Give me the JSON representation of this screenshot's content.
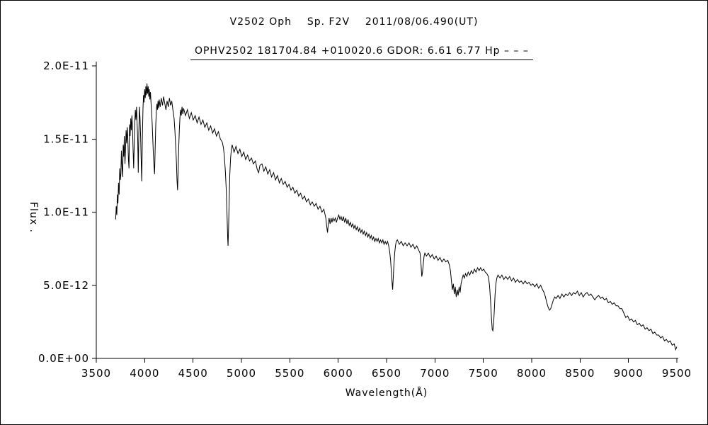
{
  "chart_data": {
    "type": "line",
    "title": "V2502 Oph    Sp. F2V    2011/08/06.490(UT)",
    "subtitle": "OPHV2502 181704.84 +010020.6 GDOR: 6.61 6.77 Hp – – –",
    "xlabel": "Wavelength(Å)",
    "ylabel": "Flux .",
    "xlim": [
      3500,
      9500
    ],
    "ylim": [
      0,
      2.0
    ],
    "y_unit_scale": "1e-11",
    "grid": false,
    "legend": "none",
    "x_ticks": [
      3500,
      4000,
      4500,
      5000,
      5500,
      6000,
      6500,
      7000,
      7500,
      8000,
      8500,
      9000,
      9500
    ],
    "y_ticks": [
      {
        "value": 0.0,
        "label": "0.0E+00"
      },
      {
        "value": 0.5,
        "label": "5.0E-12"
      },
      {
        "value": 1.0,
        "label": "1.0E-11"
      },
      {
        "value": 1.5,
        "label": "1.5E-11"
      },
      {
        "value": 2.0,
        "label": "2.0E-11"
      }
    ],
    "line_color": "#000000",
    "points": [
      [
        3700,
        0.95
      ],
      [
        3706,
        1.04
      ],
      [
        3712,
        0.98
      ],
      [
        3718,
        1.12
      ],
      [
        3724,
        1.06
      ],
      [
        3730,
        1.2
      ],
      [
        3736,
        1.12
      ],
      [
        3742,
        1.3
      ],
      [
        3748,
        1.22
      ],
      [
        3754,
        1.26
      ],
      [
        3760,
        1.42
      ],
      [
        3766,
        1.3
      ],
      [
        3772,
        1.24
      ],
      [
        3778,
        1.46
      ],
      [
        3784,
        1.38
      ],
      [
        3790,
        1.52
      ],
      [
        3796,
        1.33
      ],
      [
        3802,
        1.43
      ],
      [
        3808,
        1.56
      ],
      [
        3814,
        1.47
      ],
      [
        3820,
        1.58
      ],
      [
        3826,
        1.5
      ],
      [
        3832,
        1.36
      ],
      [
        3838,
        1.3
      ],
      [
        3844,
        1.6
      ],
      [
        3850,
        1.52
      ],
      [
        3856,
        1.64
      ],
      [
        3862,
        1.56
      ],
      [
        3868,
        1.66
      ],
      [
        3874,
        1.58
      ],
      [
        3880,
        1.44
      ],
      [
        3886,
        1.3
      ],
      [
        3892,
        1.46
      ],
      [
        3898,
        1.62
      ],
      [
        3904,
        1.7
      ],
      [
        3910,
        1.63
      ],
      [
        3916,
        1.72
      ],
      [
        3922,
        1.6
      ],
      [
        3928,
        1.5
      ],
      [
        3934,
        1.27
      ],
      [
        3940,
        1.55
      ],
      [
        3946,
        1.72
      ],
      [
        3952,
        1.64
      ],
      [
        3958,
        1.52
      ],
      [
        3964,
        1.36
      ],
      [
        3970,
        1.21
      ],
      [
        3976,
        1.5
      ],
      [
        3982,
        1.7
      ],
      [
        3988,
        1.8
      ],
      [
        3994,
        1.75
      ],
      [
        4000,
        1.84
      ],
      [
        4006,
        1.78
      ],
      [
        4012,
        1.86
      ],
      [
        4018,
        1.8
      ],
      [
        4024,
        1.88
      ],
      [
        4030,
        1.81
      ],
      [
        4036,
        1.86
      ],
      [
        4042,
        1.79
      ],
      [
        4048,
        1.84
      ],
      [
        4054,
        1.77
      ],
      [
        4060,
        1.82
      ],
      [
        4066,
        1.74
      ],
      [
        4072,
        1.68
      ],
      [
        4078,
        1.6
      ],
      [
        4084,
        1.5
      ],
      [
        4090,
        1.4
      ],
      [
        4096,
        1.32
      ],
      [
        4102,
        1.26
      ],
      [
        4108,
        1.42
      ],
      [
        4114,
        1.58
      ],
      [
        4120,
        1.68
      ],
      [
        4126,
        1.74
      ],
      [
        4132,
        1.7
      ],
      [
        4138,
        1.76
      ],
      [
        4144,
        1.71
      ],
      [
        4150,
        1.77
      ],
      [
        4160,
        1.72
      ],
      [
        4172,
        1.78
      ],
      [
        4184,
        1.73
      ],
      [
        4196,
        1.79
      ],
      [
        4208,
        1.74
      ],
      [
        4220,
        1.7
      ],
      [
        4232,
        1.76
      ],
      [
        4244,
        1.72
      ],
      [
        4256,
        1.78
      ],
      [
        4268,
        1.73
      ],
      [
        4280,
        1.76
      ],
      [
        4292,
        1.7
      ],
      [
        4304,
        1.64
      ],
      [
        4312,
        1.56
      ],
      [
        4320,
        1.46
      ],
      [
        4328,
        1.34
      ],
      [
        4334,
        1.22
      ],
      [
        4340,
        1.15
      ],
      [
        4346,
        1.28
      ],
      [
        4352,
        1.44
      ],
      [
        4358,
        1.56
      ],
      [
        4364,
        1.64
      ],
      [
        4370,
        1.7
      ],
      [
        4378,
        1.66
      ],
      [
        4386,
        1.72
      ],
      [
        4394,
        1.67
      ],
      [
        4402,
        1.71
      ],
      [
        4422,
        1.66
      ],
      [
        4442,
        1.7
      ],
      [
        4462,
        1.64
      ],
      [
        4482,
        1.68
      ],
      [
        4502,
        1.63
      ],
      [
        4522,
        1.66
      ],
      [
        4542,
        1.61
      ],
      [
        4562,
        1.65
      ],
      [
        4582,
        1.6
      ],
      [
        4602,
        1.63
      ],
      [
        4622,
        1.58
      ],
      [
        4642,
        1.61
      ],
      [
        4662,
        1.56
      ],
      [
        4682,
        1.59
      ],
      [
        4702,
        1.54
      ],
      [
        4722,
        1.57
      ],
      [
        4742,
        1.52
      ],
      [
        4762,
        1.55
      ],
      [
        4782,
        1.5
      ],
      [
        4802,
        1.48
      ],
      [
        4814,
        1.44
      ],
      [
        4824,
        1.38
      ],
      [
        4834,
        1.28
      ],
      [
        4844,
        1.14
      ],
      [
        4852,
        0.96
      ],
      [
        4858,
        0.82
      ],
      [
        4862,
        0.77
      ],
      [
        4868,
        0.92
      ],
      [
        4874,
        1.1
      ],
      [
        4880,
        1.26
      ],
      [
        4888,
        1.37
      ],
      [
        4896,
        1.43
      ],
      [
        4904,
        1.46
      ],
      [
        4924,
        1.41
      ],
      [
        4944,
        1.45
      ],
      [
        4964,
        1.4
      ],
      [
        4984,
        1.43
      ],
      [
        5004,
        1.38
      ],
      [
        5024,
        1.41
      ],
      [
        5044,
        1.36
      ],
      [
        5064,
        1.39
      ],
      [
        5084,
        1.35
      ],
      [
        5104,
        1.37
      ],
      [
        5124,
        1.33
      ],
      [
        5144,
        1.35
      ],
      [
        5164,
        1.29
      ],
      [
        5178,
        1.27
      ],
      [
        5192,
        1.32
      ],
      [
        5212,
        1.33
      ],
      [
        5232,
        1.28
      ],
      [
        5252,
        1.31
      ],
      [
        5272,
        1.26
      ],
      [
        5292,
        1.29
      ],
      [
        5312,
        1.24
      ],
      [
        5332,
        1.27
      ],
      [
        5352,
        1.22
      ],
      [
        5372,
        1.25
      ],
      [
        5392,
        1.2
      ],
      [
        5412,
        1.23
      ],
      [
        5432,
        1.19
      ],
      [
        5452,
        1.21
      ],
      [
        5472,
        1.17
      ],
      [
        5492,
        1.19
      ],
      [
        5512,
        1.15
      ],
      [
        5532,
        1.17
      ],
      [
        5552,
        1.13
      ],
      [
        5572,
        1.15
      ],
      [
        5592,
        1.11
      ],
      [
        5612,
        1.13
      ],
      [
        5632,
        1.09
      ],
      [
        5652,
        1.11
      ],
      [
        5672,
        1.07
      ],
      [
        5692,
        1.09
      ],
      [
        5712,
        1.05
      ],
      [
        5732,
        1.07
      ],
      [
        5752,
        1.04
      ],
      [
        5772,
        1.06
      ],
      [
        5792,
        1.02
      ],
      [
        5812,
        1.04
      ],
      [
        5832,
        1.0
      ],
      [
        5852,
        1.02
      ],
      [
        5872,
        0.96
      ],
      [
        5882,
        0.9
      ],
      [
        5890,
        0.86
      ],
      [
        5898,
        0.92
      ],
      [
        5906,
        0.96
      ],
      [
        5916,
        0.92
      ],
      [
        5926,
        0.96
      ],
      [
        5936,
        0.93
      ],
      [
        5946,
        0.96
      ],
      [
        5958,
        0.94
      ],
      [
        5970,
        0.96
      ],
      [
        5982,
        0.93
      ],
      [
        5994,
        0.96
      ],
      [
        6006,
        0.98
      ],
      [
        6018,
        0.95
      ],
      [
        6030,
        0.97
      ],
      [
        6042,
        0.94
      ],
      [
        6054,
        0.97
      ],
      [
        6066,
        0.93
      ],
      [
        6078,
        0.96
      ],
      [
        6090,
        0.92
      ],
      [
        6102,
        0.95
      ],
      [
        6114,
        0.91
      ],
      [
        6126,
        0.93
      ],
      [
        6138,
        0.9
      ],
      [
        6150,
        0.92
      ],
      [
        6162,
        0.89
      ],
      [
        6174,
        0.91
      ],
      [
        6186,
        0.88
      ],
      [
        6198,
        0.9
      ],
      [
        6210,
        0.87
      ],
      [
        6222,
        0.89
      ],
      [
        6234,
        0.86
      ],
      [
        6246,
        0.88
      ],
      [
        6258,
        0.85
      ],
      [
        6270,
        0.87
      ],
      [
        6282,
        0.84
      ],
      [
        6294,
        0.86
      ],
      [
        6306,
        0.83
      ],
      [
        6318,
        0.85
      ],
      [
        6330,
        0.82
      ],
      [
        6342,
        0.84
      ],
      [
        6354,
        0.81
      ],
      [
        6366,
        0.83
      ],
      [
        6378,
        0.8
      ],
      [
        6390,
        0.82
      ],
      [
        6402,
        0.8
      ],
      [
        6414,
        0.82
      ],
      [
        6426,
        0.79
      ],
      [
        6438,
        0.81
      ],
      [
        6450,
        0.79
      ],
      [
        6462,
        0.81
      ],
      [
        6474,
        0.78
      ],
      [
        6486,
        0.8
      ],
      [
        6498,
        0.78
      ],
      [
        6510,
        0.8
      ],
      [
        6522,
        0.77
      ],
      [
        6532,
        0.73
      ],
      [
        6542,
        0.67
      ],
      [
        6550,
        0.59
      ],
      [
        6558,
        0.51
      ],
      [
        6563,
        0.47
      ],
      [
        6568,
        0.54
      ],
      [
        6576,
        0.64
      ],
      [
        6584,
        0.72
      ],
      [
        6592,
        0.77
      ],
      [
        6600,
        0.8
      ],
      [
        6612,
        0.81
      ],
      [
        6632,
        0.78
      ],
      [
        6652,
        0.8
      ],
      [
        6672,
        0.77
      ],
      [
        6692,
        0.79
      ],
      [
        6712,
        0.77
      ],
      [
        6732,
        0.79
      ],
      [
        6752,
        0.76
      ],
      [
        6772,
        0.78
      ],
      [
        6792,
        0.75
      ],
      [
        6812,
        0.77
      ],
      [
        6832,
        0.74
      ],
      [
        6846,
        0.72
      ],
      [
        6856,
        0.64
      ],
      [
        6864,
        0.56
      ],
      [
        6872,
        0.59
      ],
      [
        6880,
        0.65
      ],
      [
        6888,
        0.7
      ],
      [
        6896,
        0.72
      ],
      [
        6912,
        0.7
      ],
      [
        6932,
        0.72
      ],
      [
        6952,
        0.69
      ],
      [
        6972,
        0.71
      ],
      [
        6992,
        0.68
      ],
      [
        7012,
        0.7
      ],
      [
        7032,
        0.67
      ],
      [
        7052,
        0.69
      ],
      [
        7072,
        0.66
      ],
      [
        7092,
        0.68
      ],
      [
        7112,
        0.66
      ],
      [
        7132,
        0.67
      ],
      [
        7148,
        0.64
      ],
      [
        7160,
        0.6
      ],
      [
        7170,
        0.53
      ],
      [
        7180,
        0.47
      ],
      [
        7190,
        0.51
      ],
      [
        7200,
        0.44
      ],
      [
        7210,
        0.49
      ],
      [
        7220,
        0.42
      ],
      [
        7230,
        0.47
      ],
      [
        7240,
        0.43
      ],
      [
        7250,
        0.49
      ],
      [
        7260,
        0.45
      ],
      [
        7270,
        0.51
      ],
      [
        7280,
        0.54
      ],
      [
        7292,
        0.57
      ],
      [
        7304,
        0.55
      ],
      [
        7316,
        0.58
      ],
      [
        7330,
        0.56
      ],
      [
        7344,
        0.59
      ],
      [
        7360,
        0.57
      ],
      [
        7376,
        0.6
      ],
      [
        7392,
        0.58
      ],
      [
        7408,
        0.61
      ],
      [
        7424,
        0.59
      ],
      [
        7440,
        0.62
      ],
      [
        7456,
        0.6
      ],
      [
        7472,
        0.62
      ],
      [
        7488,
        0.6
      ],
      [
        7504,
        0.61
      ],
      [
        7520,
        0.59
      ],
      [
        7536,
        0.58
      ],
      [
        7552,
        0.56
      ],
      [
        7564,
        0.5
      ],
      [
        7574,
        0.4
      ],
      [
        7584,
        0.28
      ],
      [
        7592,
        0.2
      ],
      [
        7598,
        0.19
      ],
      [
        7606,
        0.24
      ],
      [
        7614,
        0.33
      ],
      [
        7622,
        0.44
      ],
      [
        7630,
        0.51
      ],
      [
        7640,
        0.55
      ],
      [
        7652,
        0.57
      ],
      [
        7672,
        0.55
      ],
      [
        7692,
        0.57
      ],
      [
        7712,
        0.54
      ],
      [
        7732,
        0.56
      ],
      [
        7752,
        0.54
      ],
      [
        7772,
        0.56
      ],
      [
        7792,
        0.53
      ],
      [
        7812,
        0.55
      ],
      [
        7832,
        0.52
      ],
      [
        7852,
        0.54
      ],
      [
        7872,
        0.52
      ],
      [
        7892,
        0.53
      ],
      [
        7912,
        0.51
      ],
      [
        7932,
        0.53
      ],
      [
        7952,
        0.51
      ],
      [
        7972,
        0.52
      ],
      [
        7992,
        0.5
      ],
      [
        8012,
        0.51
      ],
      [
        8032,
        0.49
      ],
      [
        8052,
        0.51
      ],
      [
        8072,
        0.48
      ],
      [
        8092,
        0.5
      ],
      [
        8112,
        0.47
      ],
      [
        8128,
        0.45
      ],
      [
        8142,
        0.42
      ],
      [
        8156,
        0.38
      ],
      [
        8170,
        0.35
      ],
      [
        8184,
        0.33
      ],
      [
        8196,
        0.34
      ],
      [
        8210,
        0.37
      ],
      [
        8224,
        0.4
      ],
      [
        8238,
        0.42
      ],
      [
        8252,
        0.41
      ],
      [
        8272,
        0.43
      ],
      [
        8292,
        0.41
      ],
      [
        8312,
        0.44
      ],
      [
        8332,
        0.42
      ],
      [
        8352,
        0.44
      ],
      [
        8372,
        0.43
      ],
      [
        8392,
        0.45
      ],
      [
        8412,
        0.43
      ],
      [
        8432,
        0.45
      ],
      [
        8452,
        0.44
      ],
      [
        8472,
        0.46
      ],
      [
        8492,
        0.43
      ],
      [
        8512,
        0.45
      ],
      [
        8532,
        0.42
      ],
      [
        8552,
        0.44
      ],
      [
        8572,
        0.45
      ],
      [
        8592,
        0.43
      ],
      [
        8612,
        0.44
      ],
      [
        8632,
        0.42
      ],
      [
        8652,
        0.4
      ],
      [
        8672,
        0.42
      ],
      [
        8692,
        0.43
      ],
      [
        8712,
        0.41
      ],
      [
        8732,
        0.42
      ],
      [
        8752,
        0.4
      ],
      [
        8772,
        0.41
      ],
      [
        8792,
        0.38
      ],
      [
        8812,
        0.39
      ],
      [
        8832,
        0.37
      ],
      [
        8852,
        0.38
      ],
      [
        8872,
        0.36
      ],
      [
        8892,
        0.36
      ],
      [
        8912,
        0.34
      ],
      [
        8932,
        0.34
      ],
      [
        8952,
        0.31
      ],
      [
        8972,
        0.28
      ],
      [
        8992,
        0.29
      ],
      [
        9012,
        0.26
      ],
      [
        9032,
        0.27
      ],
      [
        9052,
        0.25
      ],
      [
        9072,
        0.26
      ],
      [
        9092,
        0.23
      ],
      [
        9112,
        0.24
      ],
      [
        9132,
        0.22
      ],
      [
        9152,
        0.23
      ],
      [
        9172,
        0.2
      ],
      [
        9192,
        0.21
      ],
      [
        9212,
        0.19
      ],
      [
        9232,
        0.2
      ],
      [
        9252,
        0.17
      ],
      [
        9272,
        0.18
      ],
      [
        9292,
        0.16
      ],
      [
        9312,
        0.16
      ],
      [
        9332,
        0.14
      ],
      [
        9352,
        0.15
      ],
      [
        9372,
        0.12
      ],
      [
        9392,
        0.13
      ],
      [
        9412,
        0.11
      ],
      [
        9432,
        0.12
      ],
      [
        9452,
        0.09
      ],
      [
        9472,
        0.1
      ],
      [
        9488,
        0.06
      ],
      [
        9500,
        0.08
      ]
    ]
  }
}
